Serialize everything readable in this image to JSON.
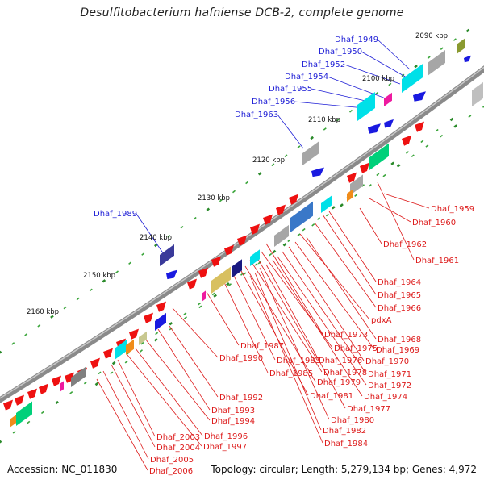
{
  "title": "Desulfitobacterium hafniense DCB-2, complete genome",
  "footer": {
    "accession": "Accession: NC_011830",
    "summary": "Topology: circular; Length: 5,279,134 bp; Genes: 4,972"
  },
  "colors": {
    "backbone": "#8a8a8a",
    "gene_red": "#ee1111",
    "gene_blue": "#1a1ae0",
    "gene_cyan": "#00e0e8",
    "gene_green": "#00d07a",
    "gene_grey": "#a6a6a6",
    "gene_navy": "#3a3a9a",
    "tick_green": "#2a8a2a",
    "label_blue": "#1f1fd6",
    "label_red": "#dd1a1a"
  },
  "kbp_ticks": [
    "2090 kbp",
    "2100 kbp",
    "2110 kbp",
    "2120 kbp",
    "2130 kbp",
    "2140 kbp",
    "2150 kbp",
    "2160 kbp"
  ],
  "blue_labels": [
    "Dhaf_1949",
    "Dhaf_1950",
    "Dhaf_1952",
    "Dhaf_1954",
    "Dhaf_1955",
    "Dhaf_1956",
    "Dhaf_1963",
    "Dhaf_1989"
  ],
  "red_labels": [
    "Dhaf_1959",
    "Dhaf_1960",
    "Dhaf_1962",
    "Dhaf_1961",
    "Dhaf_1964",
    "Dhaf_1965",
    "Dhaf_1966",
    "pdxA",
    "Dhaf_1973",
    "Dhaf_1968",
    "Dhaf_1975",
    "Dhaf_1969",
    "Dhaf_1987",
    "Dhaf_1976",
    "Dhaf_1970",
    "Dhaf_1990",
    "Dhaf_1983",
    "Dhaf_1978",
    "Dhaf_1971",
    "Dhaf_1985",
    "Dhaf_1979",
    "Dhaf_1972",
    "Dhaf_1981",
    "Dhaf_1974",
    "Dhaf_1977",
    "Dhaf_1992",
    "Dhaf_1993",
    "Dhaf_1980",
    "Dhaf_1994",
    "Dhaf_1982",
    "Dhaf_2003",
    "Dhaf_1996",
    "Dhaf_1984",
    "Dhaf_2004",
    "Dhaf_1997",
    "Dhaf_2005",
    "Dhaf_2006"
  ]
}
